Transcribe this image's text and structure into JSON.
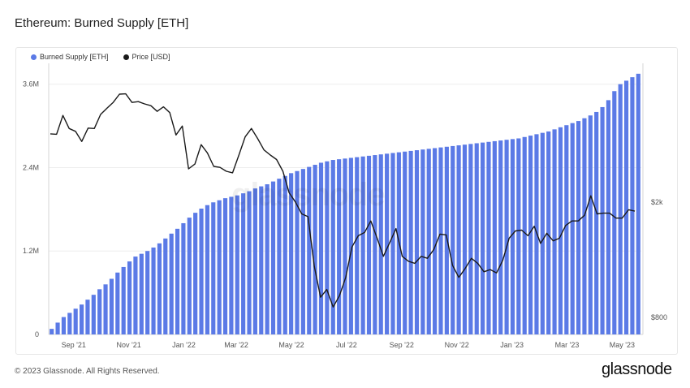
{
  "header": {
    "title": "Ethereum: Burned Supply [ETH]"
  },
  "footer": {
    "copyright": "© 2023 Glassnode. All Rights Reserved.",
    "brand": "glassnode",
    "watermark": "glassnode"
  },
  "colors": {
    "bars": "#5b7ae6",
    "line": "#1a1a1a",
    "grid": "#eeeeee"
  },
  "chart_data": {
    "type": "bar",
    "legend": [
      {
        "name": "Burned Supply [ETH]",
        "color": "#5b7ae6"
      },
      {
        "name": "Price [USD]",
        "color": "#1a1a1a"
      }
    ],
    "x_ticks": [
      {
        "label": "Sep '21",
        "t": 0.0
      },
      {
        "label": "Nov '21",
        "t": 2.0
      },
      {
        "label": "Jan '22",
        "t": 4.0
      },
      {
        "label": "Mar '22",
        "t": 5.9
      },
      {
        "label": "May '22",
        "t": 7.9
      },
      {
        "label": "Jul '22",
        "t": 9.9
      },
      {
        "label": "Sep '22",
        "t": 11.9
      },
      {
        "label": "Nov '22",
        "t": 13.9
      },
      {
        "label": "Jan '23",
        "t": 15.9
      },
      {
        "label": "Mar '23",
        "t": 17.9
      },
      {
        "label": "May '23",
        "t": 19.9
      }
    ],
    "y_left": {
      "min": 0,
      "max": 3.9,
      "ticks": [
        {
          "label": "0",
          "v": 0
        },
        {
          "label": "1.2M",
          "v": 1.2
        },
        {
          "label": "2.4M",
          "v": 2.4
        },
        {
          "label": "3.6M",
          "v": 3.6
        }
      ]
    },
    "y_right": {
      "scale": "log",
      "ticks": [
        {
          "label": "$800",
          "v": 800
        },
        {
          "label": "$2k",
          "v": 2000
        }
      ]
    },
    "burned_supply_millions": [
      0.08,
      0.17,
      0.25,
      0.31,
      0.37,
      0.43,
      0.5,
      0.57,
      0.65,
      0.72,
      0.8,
      0.89,
      0.97,
      1.05,
      1.12,
      1.16,
      1.2,
      1.25,
      1.31,
      1.38,
      1.45,
      1.52,
      1.6,
      1.68,
      1.75,
      1.81,
      1.86,
      1.9,
      1.93,
      1.96,
      1.98,
      2.0,
      2.03,
      2.06,
      2.1,
      2.13,
      2.16,
      2.2,
      2.24,
      2.28,
      2.32,
      2.35,
      2.38,
      2.41,
      2.44,
      2.47,
      2.49,
      2.51,
      2.52,
      2.53,
      2.54,
      2.55,
      2.56,
      2.57,
      2.58,
      2.59,
      2.6,
      2.61,
      2.62,
      2.63,
      2.64,
      2.65,
      2.66,
      2.67,
      2.68,
      2.69,
      2.7,
      2.71,
      2.72,
      2.73,
      2.74,
      2.75,
      2.76,
      2.77,
      2.78,
      2.79,
      2.8,
      2.81,
      2.82,
      2.84,
      2.86,
      2.88,
      2.9,
      2.92,
      2.95,
      2.98,
      3.01,
      3.04,
      3.07,
      3.11,
      3.15,
      3.2,
      3.27,
      3.37,
      3.5,
      3.6,
      3.65,
      3.7,
      3.75
    ],
    "price_usd": [
      3430,
      3420,
      3970,
      3580,
      3500,
      3230,
      3590,
      3580,
      4000,
      4200,
      4400,
      4700,
      4710,
      4400,
      4430,
      4350,
      4290,
      4100,
      4250,
      4060,
      3400,
      3650,
      2600,
      2700,
      3150,
      2950,
      2650,
      2630,
      2550,
      2520,
      2900,
      3350,
      3580,
      3300,
      3020,
      2900,
      2800,
      2550,
      2150,
      2000,
      1820,
      1780,
      1200,
      940,
      1000,
      870,
      950,
      1100,
      1400,
      1530,
      1570,
      1720,
      1500,
      1300,
      1450,
      1620,
      1300,
      1250,
      1230,
      1300,
      1280,
      1370,
      1550,
      1540,
      1210,
      1100,
      1180,
      1280,
      1230,
      1150,
      1170,
      1140,
      1260,
      1500,
      1590,
      1600,
      1530,
      1650,
      1440,
      1560,
      1470,
      1500,
      1660,
      1720,
      1720,
      1800,
      2100,
      1820,
      1830,
      1830,
      1760,
      1760,
      1880,
      1860
    ]
  }
}
